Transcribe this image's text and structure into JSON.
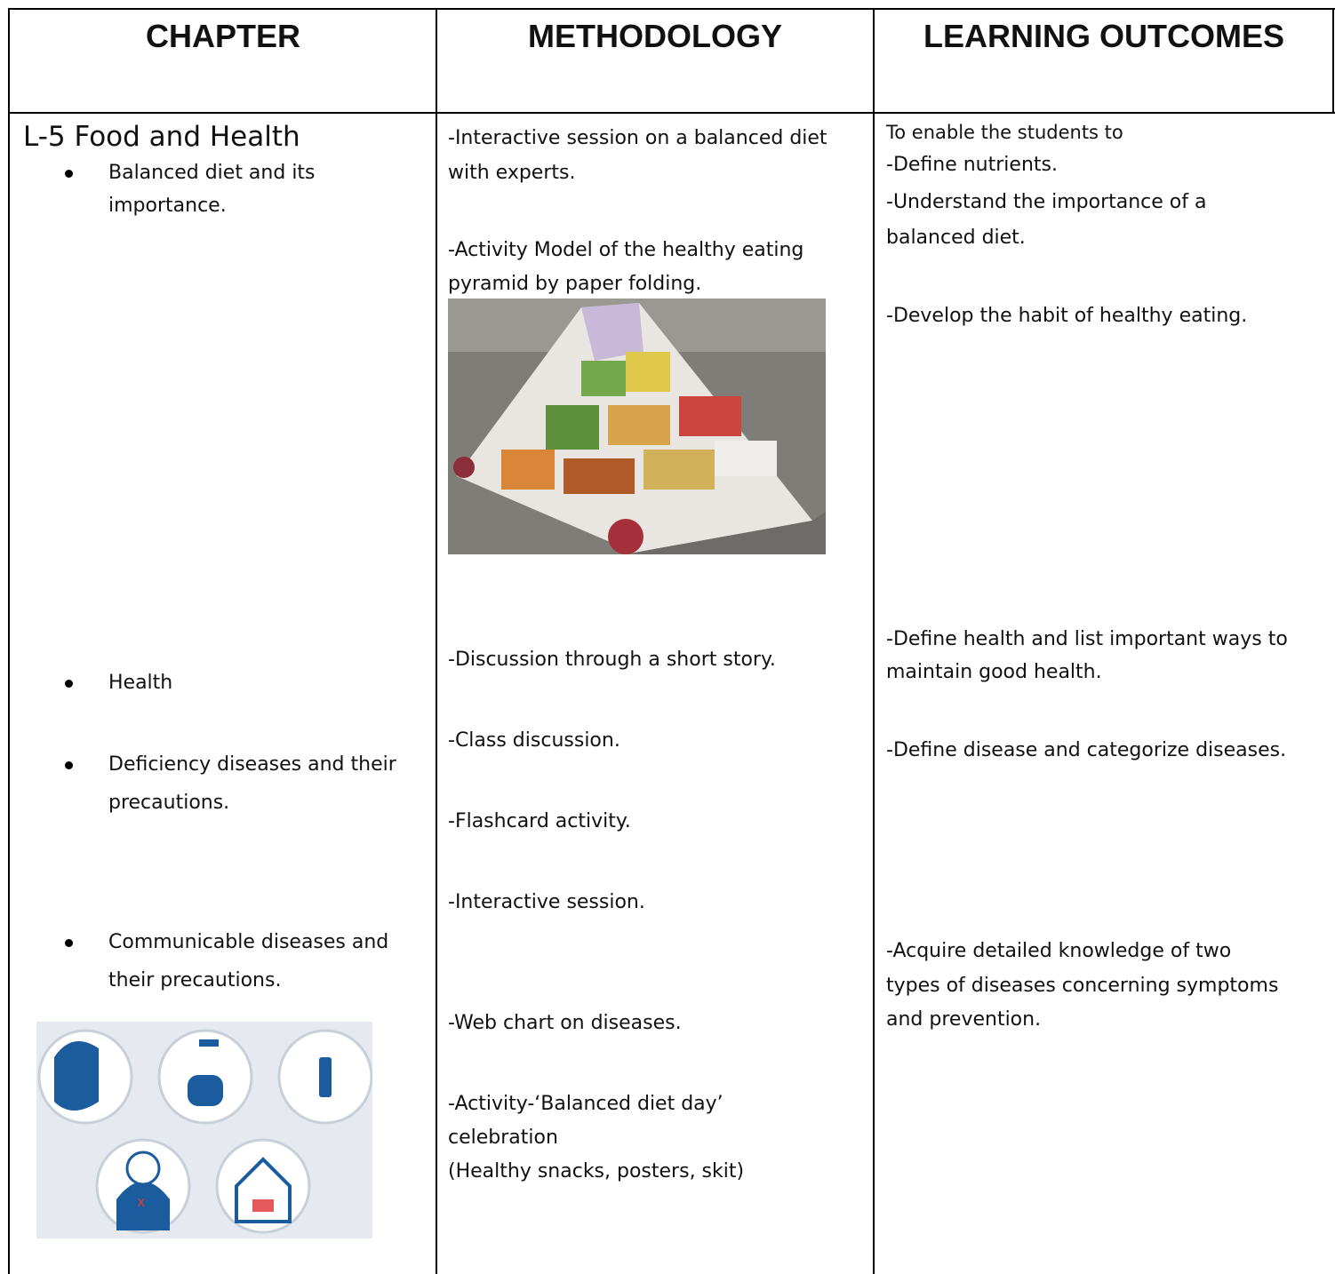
{
  "table": {
    "header": [
      "CHAPTER",
      "METHODOLOGY",
      "LEARNING OUTCOMES"
    ],
    "chapter": {
      "title": "L-5 Food and Health",
      "topics": [
        {
          "lines": [
            "Balanced diet and its",
            "importance."
          ]
        },
        {
          "lines": [
            "Health"
          ]
        },
        {
          "lines": [
            "Deficiency diseases and their",
            "precautions."
          ]
        },
        {
          "lines": [
            "Communicable diseases and",
            "their precautions."
          ]
        }
      ]
    },
    "methodology": [
      {
        "lines": [
          "-Interactive session on a balanced diet",
          "with experts."
        ]
      },
      {
        "lines": [
          "-Activity Model of the healthy eating",
          "pyramid by paper folding."
        ]
      },
      {
        "lines": [
          "-Discussion through a short story."
        ]
      },
      {
        "lines": [
          "-Class discussion."
        ]
      },
      {
        "lines": [
          "-Flashcard activity."
        ]
      },
      {
        "lines": [
          "-Interactive session."
        ]
      },
      {
        "lines": [
          "-Web chart on diseases."
        ]
      },
      {
        "lines": [
          "-Activity-‘Balanced diet day’",
          "celebration",
          "(Healthy snacks, posters, skit)"
        ]
      }
    ],
    "outcomes": {
      "intro": "To enable the students to",
      "items": [
        {
          "lines": [
            "-Define nutrients."
          ]
        },
        {
          "lines": [
            "-Understand the importance of a",
            "balanced diet."
          ]
        },
        {
          "lines": [
            "-Develop the habit of healthy eating."
          ]
        },
        {
          "lines": [
            "-Define health and list important ways to",
            "maintain good health."
          ]
        },
        {
          "lines": [
            "-Define disease and categorize diseases."
          ]
        },
        {
          "lines": [
            "-Acquire detailed knowledge of two",
            "types of diseases concerning symptoms",
            "and prevention."
          ]
        }
      ]
    }
  }
}
